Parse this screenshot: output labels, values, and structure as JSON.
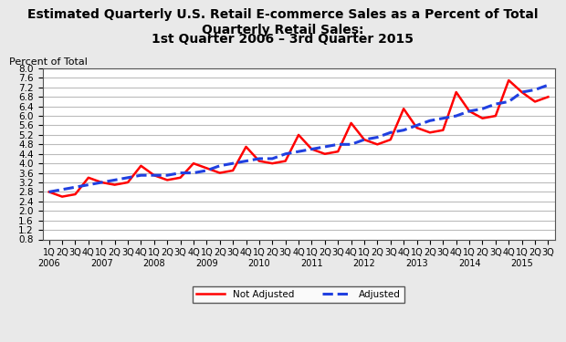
{
  "chart_data": {
    "type": "line",
    "title": "Estimated Quarterly U.S. Retail E-commerce Sales as a Percent of Total Quarterly Retail Sales:",
    "subtitle": "1st Quarter 2006 – 3rd Quarter 2015",
    "y_label": "Percent of Total",
    "categories": [
      "1Q\n2006",
      "2Q",
      "3Q",
      "4Q",
      "1Q\n2007",
      "2Q",
      "3Q",
      "4Q",
      "1Q\n2008",
      "2Q",
      "3Q",
      "4Q",
      "1Q\n2009",
      "2Q",
      "3Q",
      "4Q",
      "1Q\n2010",
      "2Q",
      "3Q",
      "4Q",
      "1Q\n2011",
      "2Q",
      "3Q",
      "4Q",
      "1Q\n2012",
      "2Q",
      "3Q",
      "4Q",
      "1Q\n2013",
      "2Q",
      "3Q",
      "4Q",
      "1Q\n2014",
      "2Q",
      "3Q",
      "4Q",
      "1Q\n2015",
      "2Q",
      "3Q"
    ],
    "series": [
      {
        "name": "Not Adjusted",
        "color": "#ff0000",
        "line_style": "solid",
        "values": [
          2.8,
          2.6,
          2.7,
          3.4,
          3.2,
          3.1,
          3.2,
          3.9,
          3.5,
          3.3,
          3.4,
          4.0,
          3.8,
          3.6,
          3.7,
          4.7,
          4.1,
          4.0,
          4.1,
          5.2,
          4.6,
          4.4,
          4.5,
          5.7,
          5.0,
          4.8,
          5.0,
          6.3,
          5.5,
          5.3,
          5.4,
          7.0,
          6.2,
          5.9,
          6.0,
          7.5,
          7.0,
          6.6,
          6.8
        ]
      },
      {
        "name": "Adjusted",
        "color": "#2040e0",
        "line_style": "dashed",
        "values": [
          2.8,
          2.9,
          3.0,
          3.1,
          3.2,
          3.3,
          3.4,
          3.5,
          3.5,
          3.5,
          3.6,
          3.6,
          3.7,
          3.9,
          4.0,
          4.1,
          4.2,
          4.2,
          4.4,
          4.5,
          4.6,
          4.7,
          4.8,
          4.8,
          5.0,
          5.1,
          5.3,
          5.4,
          5.6,
          5.8,
          5.9,
          6.0,
          6.2,
          6.3,
          6.5,
          6.6,
          7.0,
          7.1,
          7.3
        ]
      }
    ],
    "ylim": [
      0.8,
      8.0
    ],
    "yticks": [
      0.8,
      1.2,
      1.6,
      2.0,
      2.4,
      2.8,
      3.2,
      3.6,
      4.0,
      4.4,
      4.8,
      5.2,
      5.6,
      6.0,
      6.4,
      6.8,
      7.2,
      7.6,
      8.0
    ],
    "grid": true,
    "legend": "lower center"
  }
}
